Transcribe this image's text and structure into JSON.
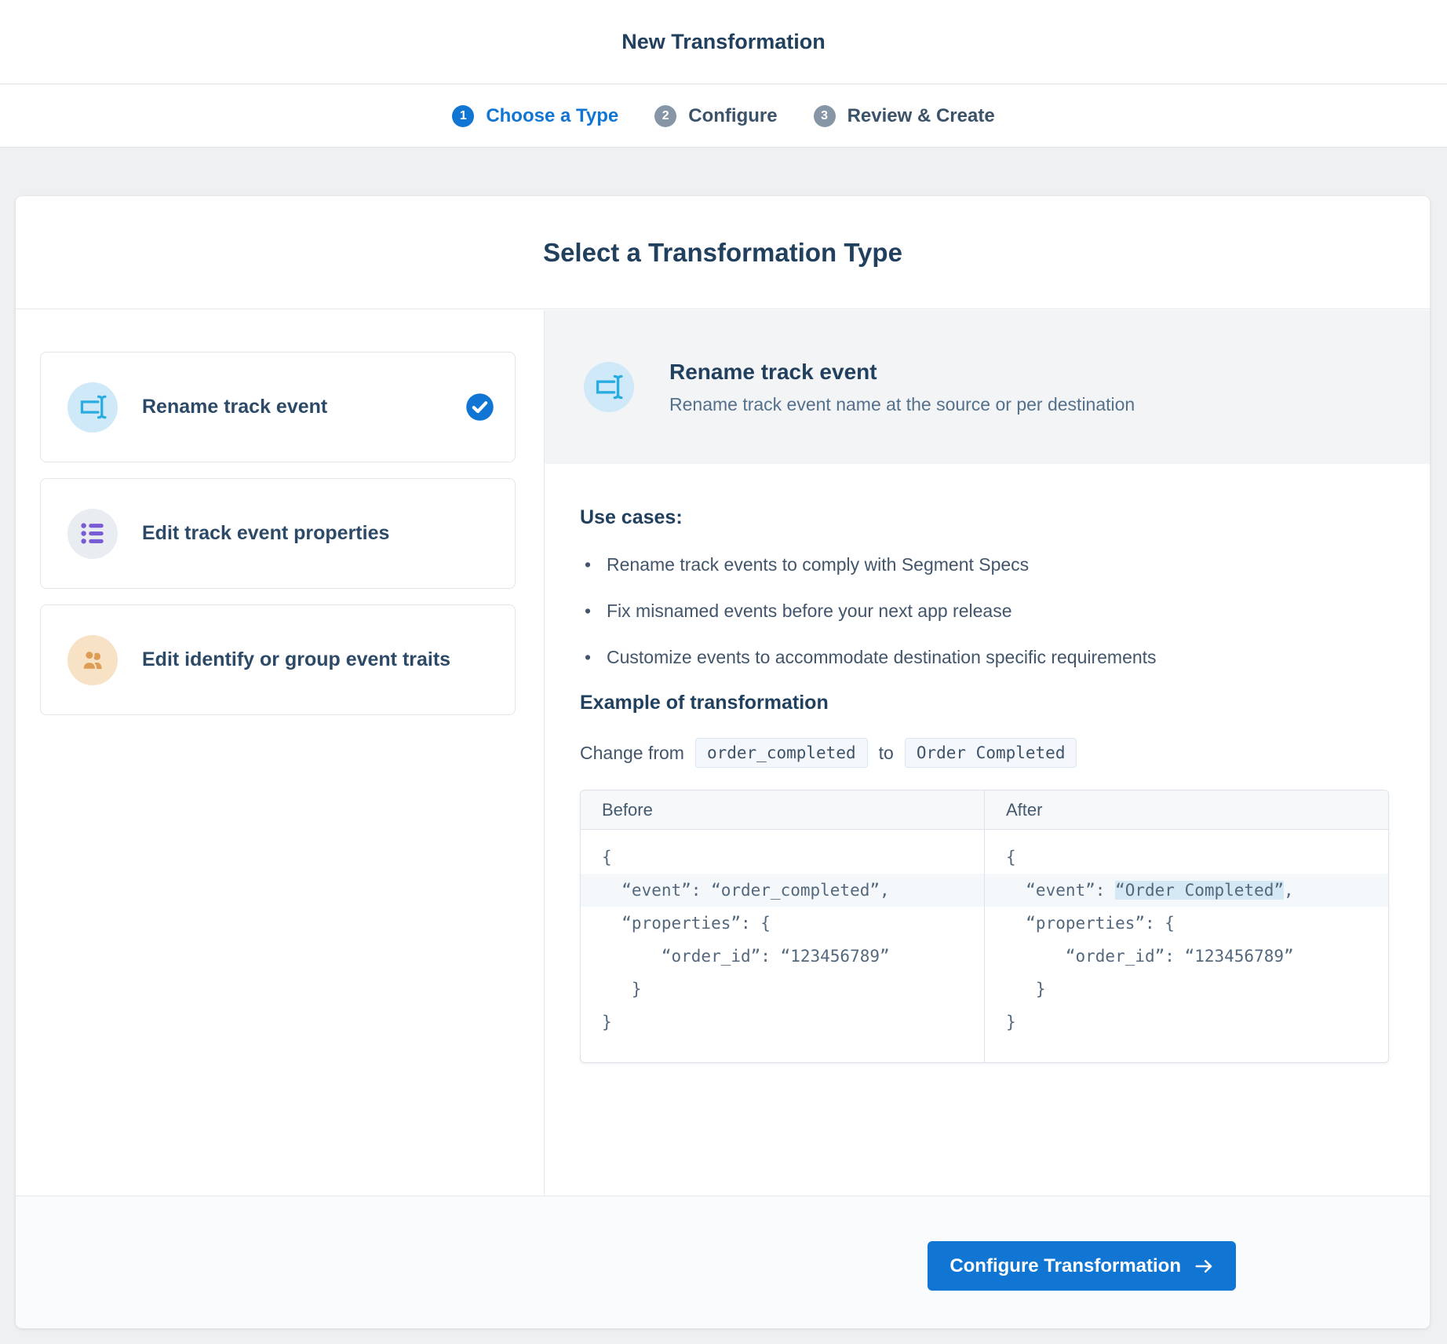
{
  "header": {
    "title": "New Transformation"
  },
  "stepper": {
    "steps": [
      {
        "num": "1",
        "label": "Choose a Type",
        "active": true
      },
      {
        "num": "2",
        "label": "Configure",
        "active": false
      },
      {
        "num": "3",
        "label": "Review & Create",
        "active": false
      }
    ]
  },
  "main": {
    "title": "Select a Transformation Type",
    "options": [
      {
        "id": "rename-track-event",
        "label": "Rename track event",
        "icon": "rename-icon",
        "selected": true
      },
      {
        "id": "edit-track-event-properties",
        "label": "Edit track event properties",
        "icon": "list-icon",
        "selected": false
      },
      {
        "id": "edit-identify-or-group-event-traits",
        "label": "Edit identify or group event traits",
        "icon": "people-icon",
        "selected": false
      }
    ],
    "detail": {
      "title": "Rename track event",
      "subtitle": "Rename track event name at the source or per destination",
      "use_cases_heading": "Use cases:",
      "use_cases": [
        "Rename track events to comply with Segment Specs",
        "Fix misnamed events before your next app release",
        "Customize events to accommodate destination specific requirements"
      ],
      "example_heading": "Example of transformation",
      "change_from_label": "Change from",
      "change_from_code": "order_completed",
      "to_label": "to",
      "to_code": "Order Completed",
      "comparison": {
        "before_label": "Before",
        "after_label": "After",
        "before_lines": [
          {
            "alt": false,
            "segments": [
              {
                "text": "{"
              }
            ]
          },
          {
            "alt": true,
            "segments": [
              {
                "text": "  “event”: “order_completed”,"
              }
            ]
          },
          {
            "alt": false,
            "segments": [
              {
                "text": "  “properties”: {"
              }
            ]
          },
          {
            "alt": false,
            "segments": [
              {
                "text": "      “order_id”: “123456789”"
              }
            ]
          },
          {
            "alt": false,
            "segments": [
              {
                "text": "   }"
              }
            ]
          },
          {
            "alt": false,
            "segments": [
              {
                "text": "}"
              }
            ]
          }
        ],
        "after_lines": [
          {
            "alt": false,
            "segments": [
              {
                "text": "{"
              }
            ]
          },
          {
            "alt": true,
            "segments": [
              {
                "text": "  “event”: "
              },
              {
                "text": "“Order Completed”",
                "highlight": true
              },
              {
                "text": ","
              }
            ]
          },
          {
            "alt": false,
            "segments": [
              {
                "text": "  “properties”: {"
              }
            ]
          },
          {
            "alt": false,
            "segments": [
              {
                "text": "      “order_id”: “123456789”"
              }
            ]
          },
          {
            "alt": false,
            "segments": [
              {
                "text": "   }"
              }
            ]
          },
          {
            "alt": false,
            "segments": [
              {
                "text": "}"
              }
            ]
          }
        ]
      }
    }
  },
  "footer": {
    "configure_button_label": "Configure Transformation"
  },
  "colors": {
    "accent_blue": "#1176d3",
    "step_gray": "#8796a6",
    "rename_icon": "#29ade0",
    "rename_icon_bg": "#cfe9f8",
    "list_icon": "#7a5bd6",
    "list_icon_bg": "#e9edf2",
    "people_icon": "#dd9d52",
    "people_icon_bg": "#f8e2c6",
    "highlight": "#d5e9f4"
  }
}
